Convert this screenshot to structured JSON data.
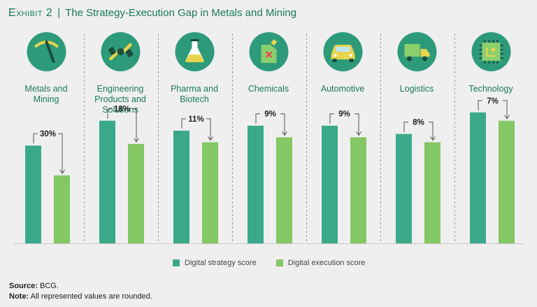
{
  "exhibit": {
    "label": "Exhibit 2",
    "separator": "|",
    "title": "The Strategy-Execution Gap in Metals and Mining"
  },
  "colors": {
    "title": "#197a56",
    "strategy": "#3aa98a",
    "execution": "#84c765",
    "icon_circle": "#2d9b7a",
    "category_text": "#197a56"
  },
  "chart_data": {
    "type": "bar",
    "categories": [
      {
        "lines": [
          "Metals and",
          "Mining"
        ],
        "icon": "pickaxe-icon",
        "gap_label": "30%"
      },
      {
        "lines": [
          "Engineering",
          "Products and",
          "Solutions"
        ],
        "icon": "wrench-icon",
        "gap_label": "18%"
      },
      {
        "lines": [
          "Pharma and",
          "Biotech"
        ],
        "icon": "flask-icon",
        "gap_label": "11%"
      },
      {
        "lines": [
          "Chemicals"
        ],
        "icon": "chemical-canister-icon",
        "gap_label": "9%"
      },
      {
        "lines": [
          "Automotive"
        ],
        "icon": "car-icon",
        "gap_label": "9%"
      },
      {
        "lines": [
          "Logistics"
        ],
        "icon": "truck-icon",
        "gap_label": "8%"
      },
      {
        "lines": [
          "Technology"
        ],
        "icon": "chip-icon",
        "gap_label": "7%"
      }
    ],
    "series": [
      {
        "name": "Digital strategy score",
        "values": [
          59,
          74,
          68,
          71,
          71,
          66,
          79
        ]
      },
      {
        "name": "Digital execution score",
        "values": [
          41,
          60,
          61,
          64,
          64,
          61,
          74
        ]
      }
    ],
    "ylim": [
      0,
      100
    ]
  },
  "legend": {
    "strategy_label": "Digital strategy score",
    "execution_label": "Digital execution score"
  },
  "footer": {
    "source_label": "Source:",
    "source_text": "BCG.",
    "note_label": "Note:",
    "note_text": "All represented values are rounded."
  }
}
